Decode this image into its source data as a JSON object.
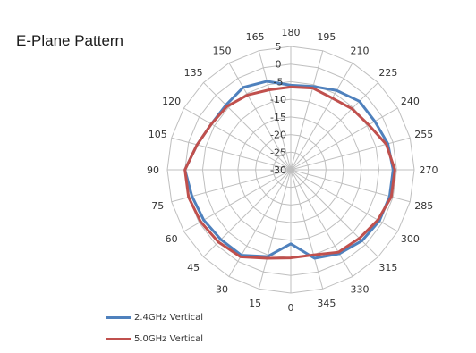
{
  "chart_data": {
    "type": "radar",
    "title": "E-Plane Pattern",
    "angle_labels": [
      "0",
      "15",
      "30",
      "45",
      "60",
      "75",
      "90",
      "105",
      "120",
      "135",
      "150",
      "165",
      "180",
      "195",
      "210",
      "225",
      "240",
      "255",
      "270",
      "285",
      "300",
      "315",
      "330",
      "345"
    ],
    "radial_range": [
      -30,
      5
    ],
    "radial_ticks": [
      -30,
      -25,
      -20,
      -15,
      -10,
      -5,
      0,
      5
    ],
    "grid": true,
    "legend_position": "bottom-left",
    "series": [
      {
        "name": "2.4GHz Vertical",
        "color": "#4f81bd",
        "values": [
          -9,
          -4.5,
          -2,
          -2,
          -1.5,
          -1,
          0,
          -2.5,
          -4,
          -4,
          -3,
          -4,
          -6,
          -5.5,
          -4,
          -2.5,
          -2.5,
          -1.5,
          -1,
          -1,
          -1,
          -1.5,
          -2.5,
          -4
        ]
      },
      {
        "name": "5.0GHz Vertical",
        "color": "#c0504d",
        "values": [
          -5,
          -4,
          -1.5,
          -1,
          -0.5,
          0,
          0,
          -2.5,
          -4,
          -4.5,
          -5.5,
          -6.5,
          -6.5,
          -6,
          -6.5,
          -5.5,
          -4.5,
          -2,
          -0.5,
          -0.5,
          -1.5,
          -2.5,
          -3,
          -5
        ]
      }
    ]
  }
}
